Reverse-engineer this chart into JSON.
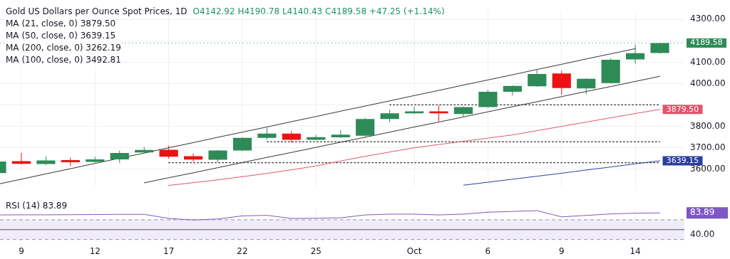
{
  "chart_data": [
    {
      "type": "candlestick",
      "title": "Gold US Dollars per Ounce Spot Prices, 1D",
      "subtitle": "O4142.92  H4190.78  L4140.43  C4189.58  +47.25 (+1.14%)",
      "ohlc": [
        [
          3582,
          3640,
          3578,
          3636
        ],
        [
          3637,
          3676,
          3622,
          3625
        ],
        [
          3624,
          3659,
          3619,
          3641
        ],
        [
          3642,
          3654,
          3614,
          3632
        ],
        [
          3634,
          3657,
          3631,
          3646
        ],
        [
          3646,
          3687,
          3629,
          3676
        ],
        [
          3678,
          3704,
          3676,
          3690
        ],
        [
          3691,
          3710,
          3649,
          3658
        ],
        [
          3661,
          3674,
          3634,
          3645
        ],
        [
          3644,
          3690,
          3634,
          3687
        ],
        [
          3687,
          3750,
          3684,
          3746
        ],
        [
          3746,
          3793,
          3738,
          3766
        ],
        [
          3766,
          3778,
          3724,
          3737
        ],
        [
          3737,
          3760,
          3734,
          3750
        ],
        [
          3749,
          3783,
          3747,
          3761
        ],
        [
          3756,
          3840,
          3750,
          3834
        ],
        [
          3834,
          3878,
          3820,
          3861
        ],
        [
          3861,
          3893,
          3858,
          3870
        ],
        [
          3870,
          3898,
          3823,
          3861
        ],
        [
          3858,
          3893,
          3843,
          3890
        ],
        [
          3890,
          3970,
          3887,
          3962
        ],
        [
          3962,
          3992,
          3944,
          3989
        ],
        [
          3987,
          4064,
          3985,
          4045
        ],
        [
          4047,
          4060,
          3947,
          3979
        ],
        [
          3977,
          4024,
          3950,
          4022
        ],
        [
          4002,
          4119,
          4000,
          4111
        ],
        [
          4113,
          4181,
          4093,
          4142.33
        ],
        [
          4142.92,
          4190.78,
          4140.43,
          4189.58
        ]
      ],
      "colors": [
        "#2e8b57",
        "#ee1111",
        "#2e8b57",
        "#ee1111",
        "#2e8b57",
        "#2e8b57",
        "#2e8b57",
        "#ee1111",
        "#ee1111",
        "#2e8b57",
        "#2e8b57",
        "#2e8b57",
        "#ee1111",
        "#2e8b57",
        "#2e8b57",
        "#2e8b57",
        "#2e8b57",
        "#2e8b57",
        "#ee1111",
        "#2e8b57",
        "#2e8b57",
        "#2e8b57",
        "#2e8b57",
        "#ee1111",
        "#2e8b57",
        "#2e8b57",
        "#2e8b57",
        "#2e8b57"
      ],
      "series": [
        {
          "type": "line",
          "color": "#e0566a",
          "line_style": "solid",
          "values": [
            null,
            null,
            null,
            null,
            null,
            null,
            null,
            3524,
            3537,
            3550,
            3565,
            3580,
            3597,
            3615,
            3638,
            3660,
            3680,
            3700,
            3715,
            3730,
            3745,
            3760,
            3780,
            3800,
            3820,
            3840,
            3860,
            3879.5
          ],
          "value_labels": [
            null,
            null,
            null,
            null,
            null,
            null,
            null,
            null,
            null,
            null,
            null,
            null,
            null,
            null,
            null,
            null,
            null,
            null,
            null,
            null,
            null,
            null,
            null,
            null,
            null,
            null,
            null,
            "3879.50"
          ]
        },
        {
          "type": "line",
          "color": "#2a3f9c",
          "line_style": "solid",
          "values": [
            null,
            null,
            null,
            null,
            null,
            null,
            null,
            null,
            null,
            null,
            null,
            null,
            null,
            null,
            null,
            null,
            null,
            null,
            null,
            3525,
            3539,
            3553,
            3567,
            3581,
            3596,
            3610,
            3625,
            3639.15
          ],
          "value_labels": [
            null,
            null,
            null,
            null,
            null,
            null,
            null,
            null,
            null,
            null,
            null,
            null,
            null,
            null,
            null,
            null,
            null,
            null,
            null,
            null,
            null,
            null,
            null,
            null,
            null,
            null,
            null,
            "3639.15"
          ]
        },
        {
          "type": "line",
          "color": "#333333",
          "line_style": "solid",
          "values": [
            3529,
            3553,
            3578,
            3602,
            3627,
            null,
            3675,
            3700,
            3724,
            3749,
            3773,
            3797,
            3822,
            3846,
            3871,
            3895,
            3919,
            3944,
            3968,
            3993,
            4017,
            4041,
            4066,
            4090,
            4115,
            4139,
            4163,
            null
          ]
        },
        {
          "type": "line",
          "color": "#333333",
          "line_style": "solid",
          "values": [
            null,
            null,
            null,
            null,
            null,
            null,
            3536,
            3560,
            3583,
            3607,
            3631,
            3655,
            3678,
            3702,
            3726,
            3749,
            3773,
            3797,
            3820,
            3844,
            3868,
            3892,
            3915,
            3939,
            3963,
            3986,
            4010,
            4034
          ]
        },
        {
          "type": "line",
          "color": "#000000",
          "line_style": "dotted",
          "values": [
            null,
            null,
            null,
            null,
            null,
            null,
            null,
            null,
            null,
            null,
            null,
            null,
            null,
            null,
            null,
            null,
            3901,
            3901,
            3901,
            3901,
            null,
            3901,
            3901,
            3901,
            3901,
            3901,
            3901,
            3901
          ]
        },
        {
          "type": "line",
          "color": "#000000",
          "line_style": "dotted",
          "values": [
            null,
            null,
            null,
            null,
            null,
            null,
            null,
            null,
            null,
            null,
            null,
            3728,
            3728,
            3728,
            3728,
            3728,
            3728,
            3728,
            3728,
            3728,
            3728,
            3728,
            3728,
            3728,
            3728,
            3728,
            3728,
            3728
          ]
        },
        {
          "type": "line",
          "color": "#000000",
          "line_style": "dotted",
          "values": [
            null,
            null,
            null,
            null,
            null,
            null,
            null,
            3630,
            3630,
            3630,
            3630,
            3630,
            3630,
            3630,
            3630,
            3630,
            3630,
            3630,
            3630,
            3630,
            3630,
            3630,
            3630,
            3630,
            3630,
            3630,
            3630,
            3630
          ]
        }
      ],
      "annotations": [
        "MA (21, close, 0)  3879.50",
        "MA (50, close, 0)  3639.15",
        "MA (200, close, 0)  3262.19",
        "MA (100, close, 0)  3492.81"
      ],
      "ref_lines": [
        {
          "axis": "y",
          "value": 4189.58,
          "label": "4189.58",
          "color": "#2e8b57",
          "line_style": "dotted"
        }
      ],
      "ylim": [
        3520,
        4340
      ],
      "yticks": [
        {
          "value": 3600,
          "label": "3600.00"
        },
        {
          "value": 3700,
          "label": "3700.00"
        },
        {
          "value": 3800,
          "label": "3800.00"
        },
        {
          "value": 3900,
          "label": null
        },
        {
          "value": 4000,
          "label": "4000.00"
        },
        {
          "value": 4100,
          "label": "4100.00"
        },
        {
          "value": 4200,
          "label": null
        },
        {
          "value": 4300,
          "label": "4300.00"
        }
      ],
      "grid": true,
      "marker": "none",
      "tick_labels": "y"
    },
    {
      "type": "line",
      "categories": [
        null,
        "9",
        null,
        null,
        "12",
        null,
        null,
        "17",
        null,
        null,
        "22",
        null,
        null,
        "25",
        null,
        null,
        null,
        "Oct",
        null,
        null,
        "6",
        null,
        null,
        "9",
        null,
        null,
        "14",
        null
      ],
      "series": [
        {
          "color": "#7e57c2",
          "values": [
            79.8,
            80,
            80,
            80.3,
            80.6,
            81,
            81,
            72.7,
            69.6,
            71.5,
            77.9,
            79,
            72.7,
            73.2,
            73.9,
            79.8,
            81.4,
            81.4,
            79.8,
            81.4,
            85.3,
            86.8,
            88.5,
            75.9,
            78.8,
            81.8,
            83.3,
            83.89
          ]
        }
      ],
      "annotations": [
        "RSI (14)  83.89"
      ],
      "bands": [
        {
          "axis": "y",
          "from": 30,
          "to": 70,
          "color": "#efebf8"
        }
      ],
      "ref_lines": [
        {
          "axis": "y",
          "value": 70,
          "color": "#9598a1",
          "line_style": "dashed"
        },
        {
          "axis": "y",
          "value": 50,
          "color": "#555555",
          "line_style": "solid"
        },
        {
          "axis": "y",
          "value": 30,
          "color": "#9598a1",
          "line_style": "dashed"
        }
      ],
      "ylim": [
        20,
        94
      ],
      "yticks": [
        {
          "value": 40,
          "label": "40.00"
        },
        {
          "value": 83.89,
          "label": "83.89"
        }
      ],
      "grid": "x",
      "marker": "none"
    }
  ]
}
